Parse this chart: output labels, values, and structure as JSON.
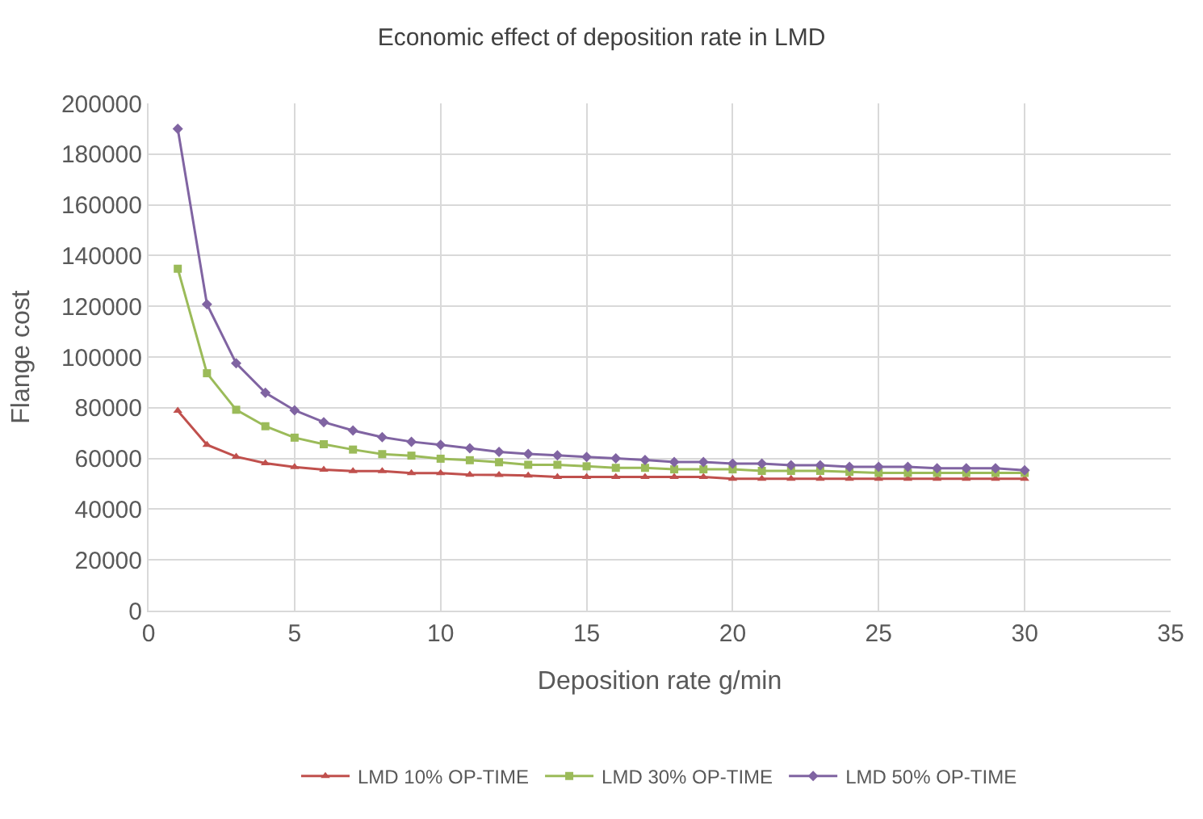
{
  "chart_data": {
    "type": "line",
    "title": "Economic effect of deposition rate in LMD",
    "xlabel": "Deposition rate g/min",
    "ylabel": "Flange cost",
    "x": [
      1,
      2,
      3,
      4,
      5,
      6,
      7,
      8,
      9,
      10,
      11,
      12,
      13,
      14,
      15,
      16,
      17,
      18,
      19,
      20,
      21,
      22,
      23,
      24,
      25,
      26,
      27,
      28,
      29,
      30
    ],
    "series": [
      {
        "name": "LMD 10% OP-TIME",
        "color": "#c0504d",
        "marker": "triangle",
        "values": [
          78800,
          65400,
          60700,
          58100,
          56600,
          55600,
          55000,
          55000,
          54200,
          54200,
          53600,
          53500,
          53300,
          52700,
          52700,
          52700,
          52700,
          52700,
          52700,
          52000,
          52000,
          52000,
          52000,
          52000,
          52000,
          52000,
          52000,
          52000,
          52000,
          52000
        ]
      },
      {
        "name": "LMD 30% OP-TIME",
        "color": "#9bbb59",
        "marker": "square",
        "values": [
          134800,
          93600,
          79200,
          72700,
          68200,
          65600,
          63500,
          61700,
          61100,
          59900,
          59300,
          58500,
          57500,
          57500,
          56900,
          56300,
          56300,
          55700,
          55700,
          55700,
          55100,
          55100,
          55100,
          54700,
          54300,
          54300,
          54300,
          54300,
          54300,
          54300
        ]
      },
      {
        "name": "LMD 50% OP-TIME",
        "color": "#8064a2",
        "marker": "diamond",
        "values": [
          190000,
          120800,
          97500,
          85900,
          79000,
          74300,
          71000,
          68400,
          66600,
          65400,
          64000,
          62600,
          61800,
          61200,
          60600,
          60000,
          59400,
          58600,
          58600,
          58000,
          58000,
          57300,
          57300,
          56700,
          56700,
          56700,
          56100,
          56100,
          56100,
          55300
        ]
      }
    ],
    "xlim": [
      0,
      35
    ],
    "xticks": [
      0,
      5,
      10,
      15,
      20,
      25,
      30,
      35
    ],
    "ylim": [
      0,
      200000
    ],
    "yticks": [
      0,
      20000,
      40000,
      60000,
      80000,
      100000,
      120000,
      140000,
      160000,
      180000,
      200000
    ],
    "grid": true,
    "legend": "bottom",
    "line_style": "solid"
  }
}
